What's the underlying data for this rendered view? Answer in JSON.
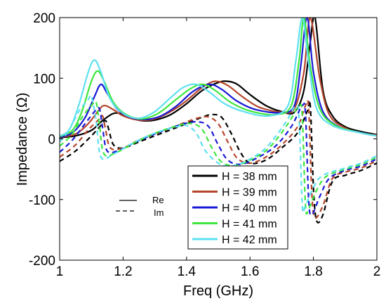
{
  "chart_data": {
    "type": "line",
    "xlabel": "Freq (GHz)",
    "ylabel": "Impedance (Ω)",
    "xlim": [
      1,
      2
    ],
    "ylim": [
      -200,
      200
    ],
    "xticks": [
      "1",
      "1.2",
      "1.4",
      "1.6",
      "1.8",
      "2"
    ],
    "yticks": [
      "-200",
      "-100",
      "0",
      "100",
      "200"
    ],
    "grid": false,
    "legend_placement": "bottom-right",
    "line_style_legend": [
      {
        "label": "Re",
        "style": "solid"
      },
      {
        "label": "Im",
        "style": "dashed"
      }
    ],
    "series": [
      {
        "name": "H = 38 mm",
        "color": "#000000",
        "re": [
          [
            1.0,
            2
          ],
          [
            1.05,
            5
          ],
          [
            1.1,
            14
          ],
          [
            1.13,
            28
          ],
          [
            1.15,
            36
          ],
          [
            1.17,
            42
          ],
          [
            1.19,
            42
          ],
          [
            1.22,
            35
          ],
          [
            1.26,
            30
          ],
          [
            1.3,
            31
          ],
          [
            1.35,
            40
          ],
          [
            1.4,
            58
          ],
          [
            1.45,
            80
          ],
          [
            1.5,
            93
          ],
          [
            1.53,
            95
          ],
          [
            1.56,
            90
          ],
          [
            1.6,
            73
          ],
          [
            1.65,
            55
          ],
          [
            1.7,
            45
          ],
          [
            1.74,
            44
          ],
          [
            1.77,
            80
          ],
          [
            1.79,
            160
          ],
          [
            1.805,
            200
          ],
          [
            1.83,
            80
          ],
          [
            1.86,
            38
          ],
          [
            1.9,
            20
          ],
          [
            1.95,
            12
          ],
          [
            2.0,
            7
          ]
        ],
        "im": [
          [
            1.0,
            -37
          ],
          [
            1.05,
            -20
          ],
          [
            1.1,
            5
          ],
          [
            1.13,
            22
          ],
          [
            1.145,
            30
          ],
          [
            1.155,
            15
          ],
          [
            1.17,
            -10
          ],
          [
            1.2,
            -15
          ],
          [
            1.25,
            -5
          ],
          [
            1.3,
            5
          ],
          [
            1.35,
            15
          ],
          [
            1.4,
            25
          ],
          [
            1.45,
            36
          ],
          [
            1.48,
            40
          ],
          [
            1.51,
            36
          ],
          [
            1.54,
            10
          ],
          [
            1.57,
            -22
          ],
          [
            1.6,
            -40
          ],
          [
            1.65,
            -35
          ],
          [
            1.7,
            -15
          ],
          [
            1.75,
            10
          ],
          [
            1.78,
            45
          ],
          [
            1.79,
            55
          ],
          [
            1.8,
            -80
          ],
          [
            1.81,
            -135
          ],
          [
            1.83,
            -125
          ],
          [
            1.86,
            -70
          ],
          [
            1.9,
            -60
          ],
          [
            1.95,
            -52
          ],
          [
            2.0,
            -40
          ]
        ]
      },
      {
        "name": "H = 39 mm",
        "color": "#b5452a",
        "re": [
          [
            1.0,
            3
          ],
          [
            1.05,
            8
          ],
          [
            1.09,
            25
          ],
          [
            1.12,
            45
          ],
          [
            1.14,
            55
          ],
          [
            1.17,
            48
          ],
          [
            1.2,
            38
          ],
          [
            1.25,
            31
          ],
          [
            1.3,
            33
          ],
          [
            1.35,
            45
          ],
          [
            1.4,
            63
          ],
          [
            1.45,
            85
          ],
          [
            1.49,
            95
          ],
          [
            1.53,
            88
          ],
          [
            1.58,
            68
          ],
          [
            1.63,
            52
          ],
          [
            1.7,
            44
          ],
          [
            1.74,
            50
          ],
          [
            1.77,
            110
          ],
          [
            1.79,
            200
          ],
          [
            1.82,
            100
          ],
          [
            1.85,
            40
          ],
          [
            1.9,
            18
          ],
          [
            1.95,
            10
          ],
          [
            2.0,
            6
          ]
        ],
        "im": [
          [
            1.0,
            -30
          ],
          [
            1.05,
            -10
          ],
          [
            1.09,
            15
          ],
          [
            1.12,
            30
          ],
          [
            1.135,
            38
          ],
          [
            1.145,
            15
          ],
          [
            1.16,
            -15
          ],
          [
            1.2,
            -15
          ],
          [
            1.25,
            -2
          ],
          [
            1.3,
            8
          ],
          [
            1.35,
            18
          ],
          [
            1.4,
            28
          ],
          [
            1.44,
            35
          ],
          [
            1.47,
            36
          ],
          [
            1.5,
            25
          ],
          [
            1.53,
            -5
          ],
          [
            1.56,
            -32
          ],
          [
            1.6,
            -40
          ],
          [
            1.65,
            -30
          ],
          [
            1.7,
            -10
          ],
          [
            1.75,
            20
          ],
          [
            1.775,
            55
          ],
          [
            1.785,
            50
          ],
          [
            1.795,
            -90
          ],
          [
            1.805,
            -130
          ],
          [
            1.83,
            -110
          ],
          [
            1.86,
            -65
          ],
          [
            1.9,
            -55
          ],
          [
            1.95,
            -48
          ],
          [
            2.0,
            -36
          ]
        ]
      },
      {
        "name": "H = 40 mm",
        "color": "#1a1ad6",
        "re": [
          [
            1.0,
            3
          ],
          [
            1.04,
            10
          ],
          [
            1.08,
            35
          ],
          [
            1.11,
            70
          ],
          [
            1.13,
            90
          ],
          [
            1.15,
            75
          ],
          [
            1.18,
            50
          ],
          [
            1.22,
            36
          ],
          [
            1.27,
            32
          ],
          [
            1.32,
            38
          ],
          [
            1.37,
            55
          ],
          [
            1.42,
            78
          ],
          [
            1.47,
            90
          ],
          [
            1.51,
            82
          ],
          [
            1.56,
            62
          ],
          [
            1.62,
            48
          ],
          [
            1.7,
            43
          ],
          [
            1.74,
            55
          ],
          [
            1.76,
            120
          ],
          [
            1.78,
            200
          ],
          [
            1.8,
            110
          ],
          [
            1.83,
            45
          ],
          [
            1.88,
            20
          ],
          [
            1.95,
            10
          ],
          [
            2.0,
            5
          ]
        ],
        "im": [
          [
            1.0,
            -22
          ],
          [
            1.04,
            -2
          ],
          [
            1.08,
            25
          ],
          [
            1.11,
            45
          ],
          [
            1.125,
            50
          ],
          [
            1.135,
            20
          ],
          [
            1.15,
            -20
          ],
          [
            1.19,
            -18
          ],
          [
            1.24,
            -5
          ],
          [
            1.3,
            8
          ],
          [
            1.35,
            18
          ],
          [
            1.4,
            26
          ],
          [
            1.44,
            28
          ],
          [
            1.47,
            20
          ],
          [
            1.5,
            -10
          ],
          [
            1.53,
            -35
          ],
          [
            1.57,
            -42
          ],
          [
            1.62,
            -32
          ],
          [
            1.68,
            -12
          ],
          [
            1.73,
            20
          ],
          [
            1.765,
            55
          ],
          [
            1.775,
            40
          ],
          [
            1.785,
            -100
          ],
          [
            1.795,
            -125
          ],
          [
            1.82,
            -95
          ],
          [
            1.85,
            -65
          ],
          [
            1.9,
            -52
          ],
          [
            1.95,
            -45
          ],
          [
            2.0,
            -33
          ]
        ]
      },
      {
        "name": "H = 41 mm",
        "color": "#3de63d",
        "re": [
          [
            1.0,
            4
          ],
          [
            1.04,
            14
          ],
          [
            1.07,
            45
          ],
          [
            1.1,
            95
          ],
          [
            1.12,
            112
          ],
          [
            1.14,
            95
          ],
          [
            1.17,
            60
          ],
          [
            1.21,
            40
          ],
          [
            1.26,
            33
          ],
          [
            1.31,
            42
          ],
          [
            1.36,
            62
          ],
          [
            1.41,
            82
          ],
          [
            1.45,
            90
          ],
          [
            1.49,
            80
          ],
          [
            1.54,
            60
          ],
          [
            1.6,
            46
          ],
          [
            1.68,
            40
          ],
          [
            1.73,
            55
          ],
          [
            1.755,
            130
          ],
          [
            1.77,
            200
          ],
          [
            1.79,
            120
          ],
          [
            1.82,
            50
          ],
          [
            1.87,
            22
          ],
          [
            1.95,
            10
          ],
          [
            2.0,
            5
          ]
        ],
        "im": [
          [
            1.0,
            -12
          ],
          [
            1.04,
            8
          ],
          [
            1.07,
            35
          ],
          [
            1.1,
            55
          ],
          [
            1.115,
            60
          ],
          [
            1.125,
            25
          ],
          [
            1.14,
            -25
          ],
          [
            1.18,
            -22
          ],
          [
            1.23,
            -8
          ],
          [
            1.28,
            5
          ],
          [
            1.33,
            15
          ],
          [
            1.38,
            23
          ],
          [
            1.42,
            25
          ],
          [
            1.45,
            15
          ],
          [
            1.48,
            -15
          ],
          [
            1.51,
            -38
          ],
          [
            1.55,
            -44
          ],
          [
            1.6,
            -35
          ],
          [
            1.66,
            -15
          ],
          [
            1.72,
            25
          ],
          [
            1.755,
            55
          ],
          [
            1.765,
            35
          ],
          [
            1.775,
            -110
          ],
          [
            1.785,
            -115
          ],
          [
            1.81,
            -85
          ],
          [
            1.84,
            -62
          ],
          [
            1.9,
            -50
          ],
          [
            1.95,
            -42
          ],
          [
            2.0,
            -30
          ]
        ]
      },
      {
        "name": "H = 42 mm",
        "color": "#5ee0f0",
        "re": [
          [
            1.0,
            5
          ],
          [
            1.03,
            15
          ],
          [
            1.06,
            55
          ],
          [
            1.09,
            110
          ],
          [
            1.11,
            130
          ],
          [
            1.13,
            110
          ],
          [
            1.16,
            65
          ],
          [
            1.2,
            42
          ],
          [
            1.25,
            34
          ],
          [
            1.3,
            45
          ],
          [
            1.35,
            68
          ],
          [
            1.39,
            85
          ],
          [
            1.43,
            90
          ],
          [
            1.47,
            78
          ],
          [
            1.52,
            58
          ],
          [
            1.58,
            45
          ],
          [
            1.66,
            38
          ],
          [
            1.72,
            55
          ],
          [
            1.745,
            130
          ],
          [
            1.765,
            200
          ],
          [
            1.785,
            125
          ],
          [
            1.81,
            50
          ],
          [
            1.86,
            22
          ],
          [
            1.95,
            10
          ],
          [
            2.0,
            5
          ]
        ],
        "im": [
          [
            1.0,
            -5
          ],
          [
            1.03,
            15
          ],
          [
            1.06,
            45
          ],
          [
            1.09,
            65
          ],
          [
            1.1,
            70
          ],
          [
            1.115,
            30
          ],
          [
            1.13,
            -30
          ],
          [
            1.17,
            -25
          ],
          [
            1.22,
            -10
          ],
          [
            1.27,
            3
          ],
          [
            1.32,
            13
          ],
          [
            1.37,
            20
          ],
          [
            1.4,
            22
          ],
          [
            1.43,
            10
          ],
          [
            1.46,
            -20
          ],
          [
            1.5,
            -40
          ],
          [
            1.54,
            -45
          ],
          [
            1.59,
            -36
          ],
          [
            1.65,
            -15
          ],
          [
            1.71,
            25
          ],
          [
            1.745,
            55
          ],
          [
            1.755,
            30
          ],
          [
            1.765,
            -110
          ],
          [
            1.775,
            -110
          ],
          [
            1.8,
            -80
          ],
          [
            1.83,
            -60
          ],
          [
            1.9,
            -48
          ],
          [
            1.95,
            -40
          ],
          [
            2.0,
            -28
          ]
        ]
      }
    ]
  }
}
